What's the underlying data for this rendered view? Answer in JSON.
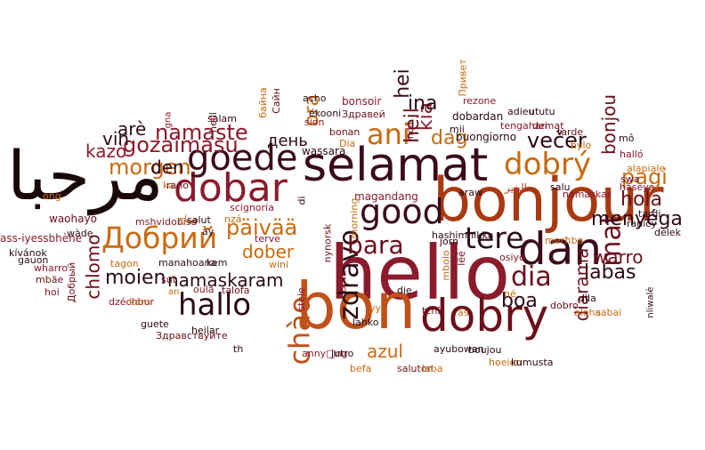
{
  "colors": {
    "background": "#ffffff",
    "palette": [
      "#6b0f1a",
      "#8b1a2b",
      "#3b0a0a",
      "#c0392b",
      "#d47a12",
      "#a83a12",
      "#c96a10",
      "#2c0a14"
    ]
  },
  "words": [
    {
      "text": "hello",
      "color": "#8b1a2b"
    },
    {
      "text": "bon",
      "color": "#c0511b"
    },
    {
      "text": "bonjour",
      "color": "#a83a12"
    },
    {
      "text": "selamat",
      "color": "#3b0a1a"
    },
    {
      "text": "مرحبا",
      "color": "#1a0808"
    },
    {
      "text": "dobar",
      "color": "#8b1a2b"
    },
    {
      "text": "dobry",
      "color": "#6b0f1a"
    },
    {
      "text": "dan",
      "color": "#3b0a1a"
    },
    {
      "text": "goede",
      "color": "#3b0a1a"
    },
    {
      "text": "good",
      "color": "#3b0a1a"
    },
    {
      "text": "dobrý",
      "color": "#c96a10"
    },
    {
      "text": "Добрий",
      "color": "#c96a10"
    },
    {
      "text": "tere",
      "color": "#2c0a14"
    },
    {
      "text": "hallo",
      "color": "#2c0a14"
    },
    {
      "text": "chào",
      "color": "#c0511b"
    },
    {
      "text": "zdravo",
      "color": "#2c0a14"
    },
    {
      "text": "bara",
      "color": "#6b0f1a"
    },
    {
      "text": "dia",
      "color": "#6b0f1a"
    },
    {
      "text": "ani",
      "color": "#c96a10"
    },
    {
      "text": "mat",
      "color": "#6b0f1a"
    },
    {
      "text": "namaste",
      "color": "#8b1a2b"
    },
    {
      "text": "gozaimasu",
      "color": "#8b1a2b"
    },
    {
      "text": "morgen",
      "color": "#c96a10"
    },
    {
      "text": "večer",
      "color": "#2c0a14"
    },
    {
      "text": "heil",
      "color": "#6b0f1a"
    },
    {
      "text": "dag",
      "color": "#c96a10"
    },
    {
      "text": "kia",
      "color": "#8b1a2b"
    },
    {
      "text": "ina",
      "color": "#2c0a14"
    },
    {
      "text": "ora",
      "color": "#c96a10"
    },
    {
      "text": "hei",
      "color": "#3b0a1a"
    },
    {
      "text": "den",
      "color": "#2c0a14"
    },
    {
      "text": "день",
      "color": "#2c0a14"
    },
    {
      "text": "kazò",
      "color": "#8b1a2b"
    },
    {
      "text": "vin",
      "color": "#2c0a14"
    },
    {
      "text": "arè",
      "color": "#2c0a14"
    },
    {
      "text": "päivää",
      "color": "#c96a10"
    },
    {
      "text": "dober",
      "color": "#c96a10"
    },
    {
      "text": "namaskaram",
      "color": "#2c0a14"
    },
    {
      "text": "moien",
      "color": "#2c0a14"
    },
    {
      "text": "chlomo",
      "color": "#6b0f1a"
    },
    {
      "text": "azul",
      "color": "#c96a10"
    },
    {
      "text": "boa",
      "color": "#2c0a14"
    },
    {
      "text": "labas",
      "color": "#2c0a14"
    },
    {
      "text": "warro",
      "color": "#6b0f1a"
    },
    {
      "text": "menyéga",
      "color": "#2c0a14"
    },
    {
      "text": "pagi",
      "color": "#c96a10"
    },
    {
      "text": "hola",
      "color": "#6b0f1a"
    },
    {
      "text": "bonjou",
      "color": "#6b0f1a"
    },
    {
      "text": "diarama",
      "color": "#6b0f1a"
    },
    {
      "text": "ass-iyessbhène",
      "color": "#8b1a2b"
    },
    {
      "text": "waohayô",
      "color": "#6b0f1a"
    },
    {
      "text": "wàde",
      "color": "#2c0a14"
    },
    {
      "text": "kívánok",
      "color": "#2c0a14"
    },
    {
      "text": "gauon",
      "color": "#2c0a14"
    },
    {
      "text": "wharro",
      "color": "#8b1a2b"
    },
    {
      "text": "mbäe",
      "color": "#6b0f1a"
    },
    {
      "text": "hoi",
      "color": "#8b1a2b"
    },
    {
      "text": "Добрый",
      "color": "#6b0f1a"
    },
    {
      "text": "ong",
      "color": "#c96a10"
    },
    {
      "text": "ka",
      "color": "#c96a10"
    },
    {
      "text": "gna",
      "color": "#8b1a2b"
    },
    {
      "text": "heill",
      "color": "#6b0f1a"
    },
    {
      "text": "salam",
      "color": "#2c0a14"
    },
    {
      "text": "байна",
      "color": "#c96a10"
    },
    {
      "text": "Сайн",
      "color": "#6b0f1a"
    },
    {
      "text": "acho",
      "color": "#2c0a14"
    },
    {
      "text": "ékooni",
      "color": "#2c0a14"
    },
    {
      "text": "sion",
      "color": "#8b1a2b"
    },
    {
      "text": "bonsoir",
      "color": "#8b1a2b"
    },
    {
      "text": "Здравей",
      "color": "#6b0f1a"
    },
    {
      "text": "bonan",
      "color": "#6b0f1a"
    },
    {
      "text": "wassara",
      "color": "#2c0a14"
    },
    {
      "text": "Dia",
      "color": "#c96a10"
    },
    {
      "text": "inda",
      "color": "#6b0f1a"
    },
    {
      "text": "mii",
      "color": "#2c0a14"
    },
    {
      "text": "Привет",
      "color": "#c96a10"
    },
    {
      "text": "rezone",
      "color": "#8b1a2b"
    },
    {
      "text": "dobardan",
      "color": "#2c0a14"
    },
    {
      "text": "adieu",
      "color": "#2c0a14"
    },
    {
      "text": "ututu",
      "color": "#2c0a14"
    },
    {
      "text": "tengahari",
      "color": "#8b1a2b"
    },
    {
      "text": "demat",
      "color": "#6b0f1a"
    },
    {
      "text": "buongiorno",
      "color": "#2c0a14"
    },
    {
      "text": "tarde",
      "color": "#6b0f1a"
    },
    {
      "text": "hylo",
      "color": "#c96a10"
    },
    {
      "text": "mô",
      "color": "#2c0a14"
    },
    {
      "text": "halló",
      "color": "#8b1a2b"
    },
    {
      "text": "alapiale",
      "color": "#c96a10"
    },
    {
      "text": "swa",
      "color": "#6b0f1a"
    },
    {
      "text": "haseyo",
      "color": "#8b1a2b"
    },
    {
      "text": "tardi",
      "color": "#2c0a14"
    },
    {
      "text": "ranicy",
      "color": "#2c0a14"
    },
    {
      "text": "delek",
      "color": "#2c0a14"
    },
    {
      "text": "salu",
      "color": "#2c0a14"
    },
    {
      "text": "namaskar",
      "color": "#8b1a2b"
    },
    {
      "text": "الخير",
      "color": "#c0392b"
    },
    {
      "text": "araw",
      "color": "#2c0a14"
    },
    {
      "text": "magandang",
      "color": "#8b1a2b"
    },
    {
      "text": "rano",
      "color": "#6b0f1a"
    },
    {
      "text": "scignoría",
      "color": "#8b1a2b"
    },
    {
      "text": "nzá",
      "color": "#c96a10"
    },
    {
      "text": "di",
      "color": "#2c0a14"
    },
    {
      "text": "nynorsk",
      "color": "#6b0f1a"
    },
    {
      "text": "morning",
      "color": "#c96a10"
    },
    {
      "text": "hashimnikka",
      "color": "#2c0a14"
    },
    {
      "text": "jorn",
      "color": "#2c0a14"
    },
    {
      "text": "lëé",
      "color": "#6b0f1a"
    },
    {
      "text": "mbolo",
      "color": "#c96a10"
    },
    {
      "text": "osiyo",
      "color": "#8b1a2b"
    },
    {
      "text": "merħba",
      "color": "#c96a10"
    },
    {
      "text": "mshvidobisa",
      "color": "#8b1a2b"
    },
    {
      "text": "صباح",
      "color": "#c96a10"
    },
    {
      "text": "tagon",
      "color": "#c96a10"
    },
    {
      "text": "manahoana",
      "color": "#2c0a14"
    },
    {
      "text": "kem",
      "color": "#2c0a14"
    },
    {
      "text": "sut",
      "color": "#6b0f1a"
    },
    {
      "text": "an",
      "color": "#c96a10"
    },
    {
      "text": "salut",
      "color": "#2c0a14"
    },
    {
      "text": "ay",
      "color": "#2c0a14"
    },
    {
      "text": "terve",
      "color": "#8b1a2b"
    },
    {
      "text": "wini",
      "color": "#c96a10"
    },
    {
      "text": "dzéchbur",
      "color": "#8b1a2b"
    },
    {
      "text": "karo",
      "color": "#c96a10"
    },
    {
      "text": "oulà",
      "color": "#8b1a2b"
    },
    {
      "text": "talofa",
      "color": "#6b0f1a"
    },
    {
      "text": "steie",
      "color": "#8b1a2b"
    },
    {
      "text": "oma",
      "color": "#8b1a2b"
    },
    {
      "text": "die",
      "color": "#2c0a14"
    },
    {
      "text": "né",
      "color": "#c96a10"
    },
    {
      "text": "dobro",
      "color": "#6b0f1a"
    },
    {
      "text": "dila",
      "color": "#2c0a14"
    },
    {
      "text": "aloha",
      "color": "#c96a10"
    },
    {
      "text": "sabai",
      "color": "#c96a10"
    },
    {
      "text": "nliwalè",
      "color": "#2c0a14"
    },
    {
      "text": "guete",
      "color": "#2c0a14"
    },
    {
      "text": "Здравствуйте",
      "color": "#6b0f1a"
    },
    {
      "text": "heilar",
      "color": "#2c0a14"
    },
    {
      "text": "th",
      "color": "#2c0a14"
    },
    {
      "text": "yy",
      "color": "#c96a10"
    },
    {
      "text": "tchî",
      "color": "#6b0f1a"
    },
    {
      "text": "as",
      "color": "#c96a10"
    },
    {
      "text": "lahko",
      "color": "#2c0a14"
    },
    {
      "text": "anny□ng",
      "color": "#8b1a2b"
    },
    {
      "text": "jutro",
      "color": "#2c0a14"
    },
    {
      "text": "ayubowan",
      "color": "#2c0a14"
    },
    {
      "text": "boujou",
      "color": "#2c0a14"
    },
    {
      "text": "hoeien",
      "color": "#c96a10"
    },
    {
      "text": "kumusta",
      "color": "#2c0a14"
    },
    {
      "text": "befa",
      "color": "#c96a10"
    },
    {
      "text": "saluton",
      "color": "#6b0f1a"
    },
    {
      "text": "laba",
      "color": "#c96a10"
    }
  ]
}
